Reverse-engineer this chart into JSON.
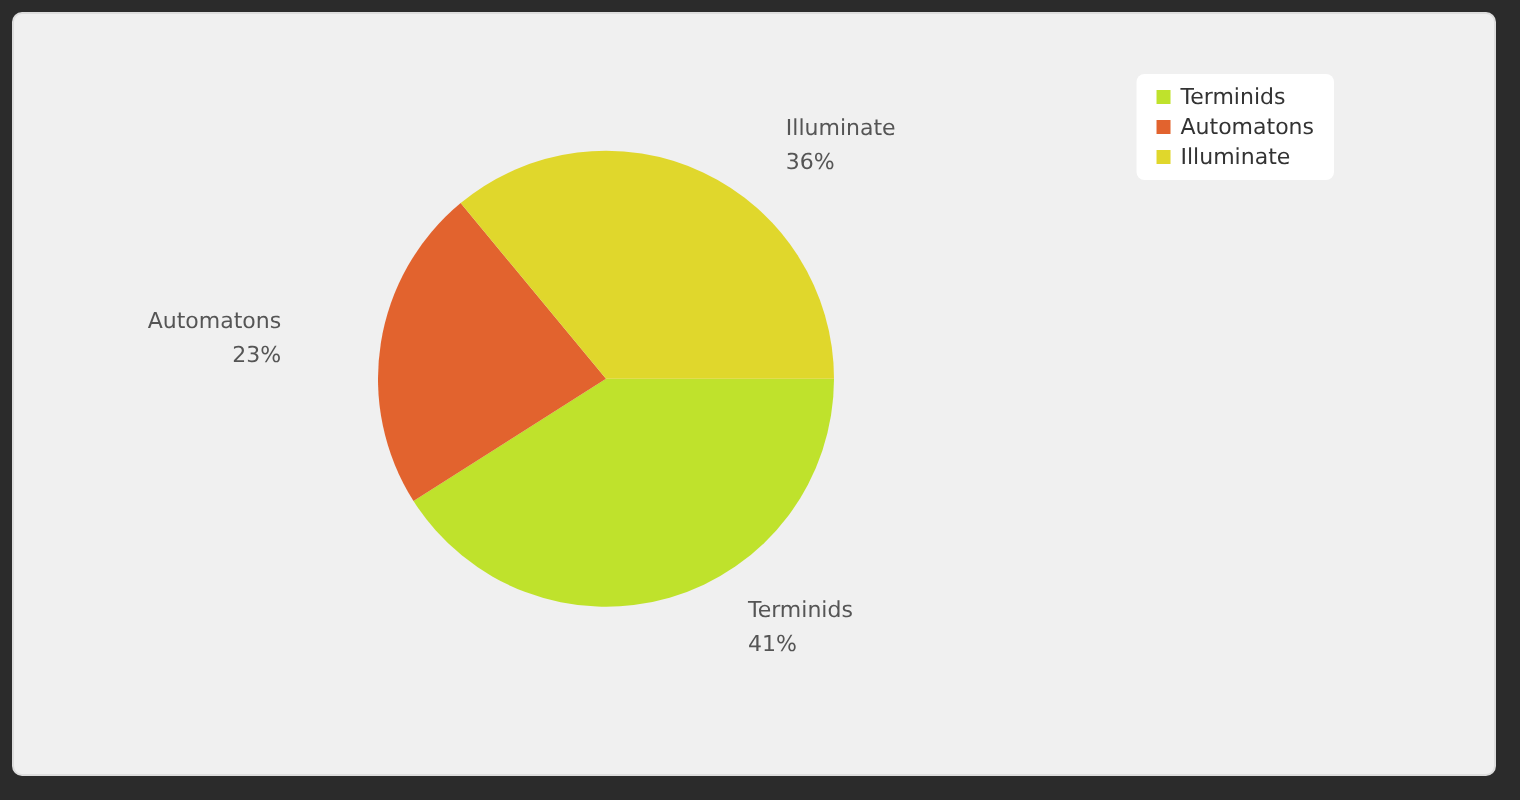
{
  "chart_data": {
    "type": "pie",
    "categories": [
      "Terminids",
      "Automatons",
      "Illuminate"
    ],
    "values": [
      41,
      23,
      36
    ],
    "value_labels": [
      "41%",
      "23%",
      "36%"
    ],
    "colors": [
      "#bfe22c",
      "#e2632e",
      "#e0d72c"
    ],
    "legend": "top right"
  }
}
